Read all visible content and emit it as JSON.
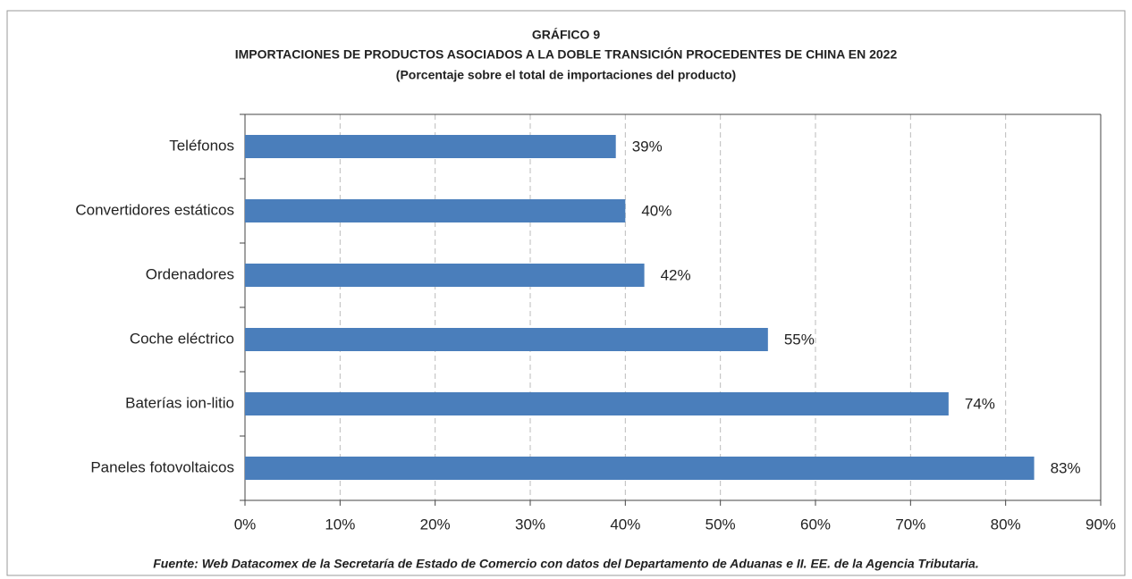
{
  "chart_data": {
    "type": "bar",
    "orientation": "horizontal",
    "title": "GRÁFICO 9",
    "subtitle": "IMPORTACIONES DE PRODUCTOS ASOCIADOS A LA DOBLE TRANSICIÓN PROCEDENTES DE CHINA EN 2022",
    "note": "(Porcentaje sobre el total de importaciones del producto)",
    "source": "Fuente: Web Datacomex de la Secretaría de Estado de Comercio con datos del Departamento de Aduanas e II. EE. de la Agencia Tributaria.",
    "categories": [
      "Teléfonos",
      "Convertidores estáticos",
      "Ordenadores",
      "Coche eléctrico",
      "Baterías ion-litio",
      "Paneles fotovoltaicos"
    ],
    "values": [
      39,
      40,
      42,
      55,
      74,
      83
    ],
    "value_labels": [
      "39%",
      "40%",
      "42%",
      "55%",
      "74%",
      "83%"
    ],
    "color": "#4a7ebb",
    "xlim": [
      0,
      90
    ],
    "xticks": [
      {
        "value": 0,
        "label": "0%"
      },
      {
        "value": 10,
        "label": "10%"
      },
      {
        "value": 20,
        "label": "20%"
      },
      {
        "value": 30,
        "label": "30%"
      },
      {
        "value": 40,
        "label": "40%"
      },
      {
        "value": 50,
        "label": "50%"
      },
      {
        "value": 60,
        "label": "60%"
      },
      {
        "value": 70,
        "label": "70%"
      },
      {
        "value": 80,
        "label": "80%"
      },
      {
        "value": 90,
        "label": "90%"
      }
    ],
    "grid": true
  }
}
